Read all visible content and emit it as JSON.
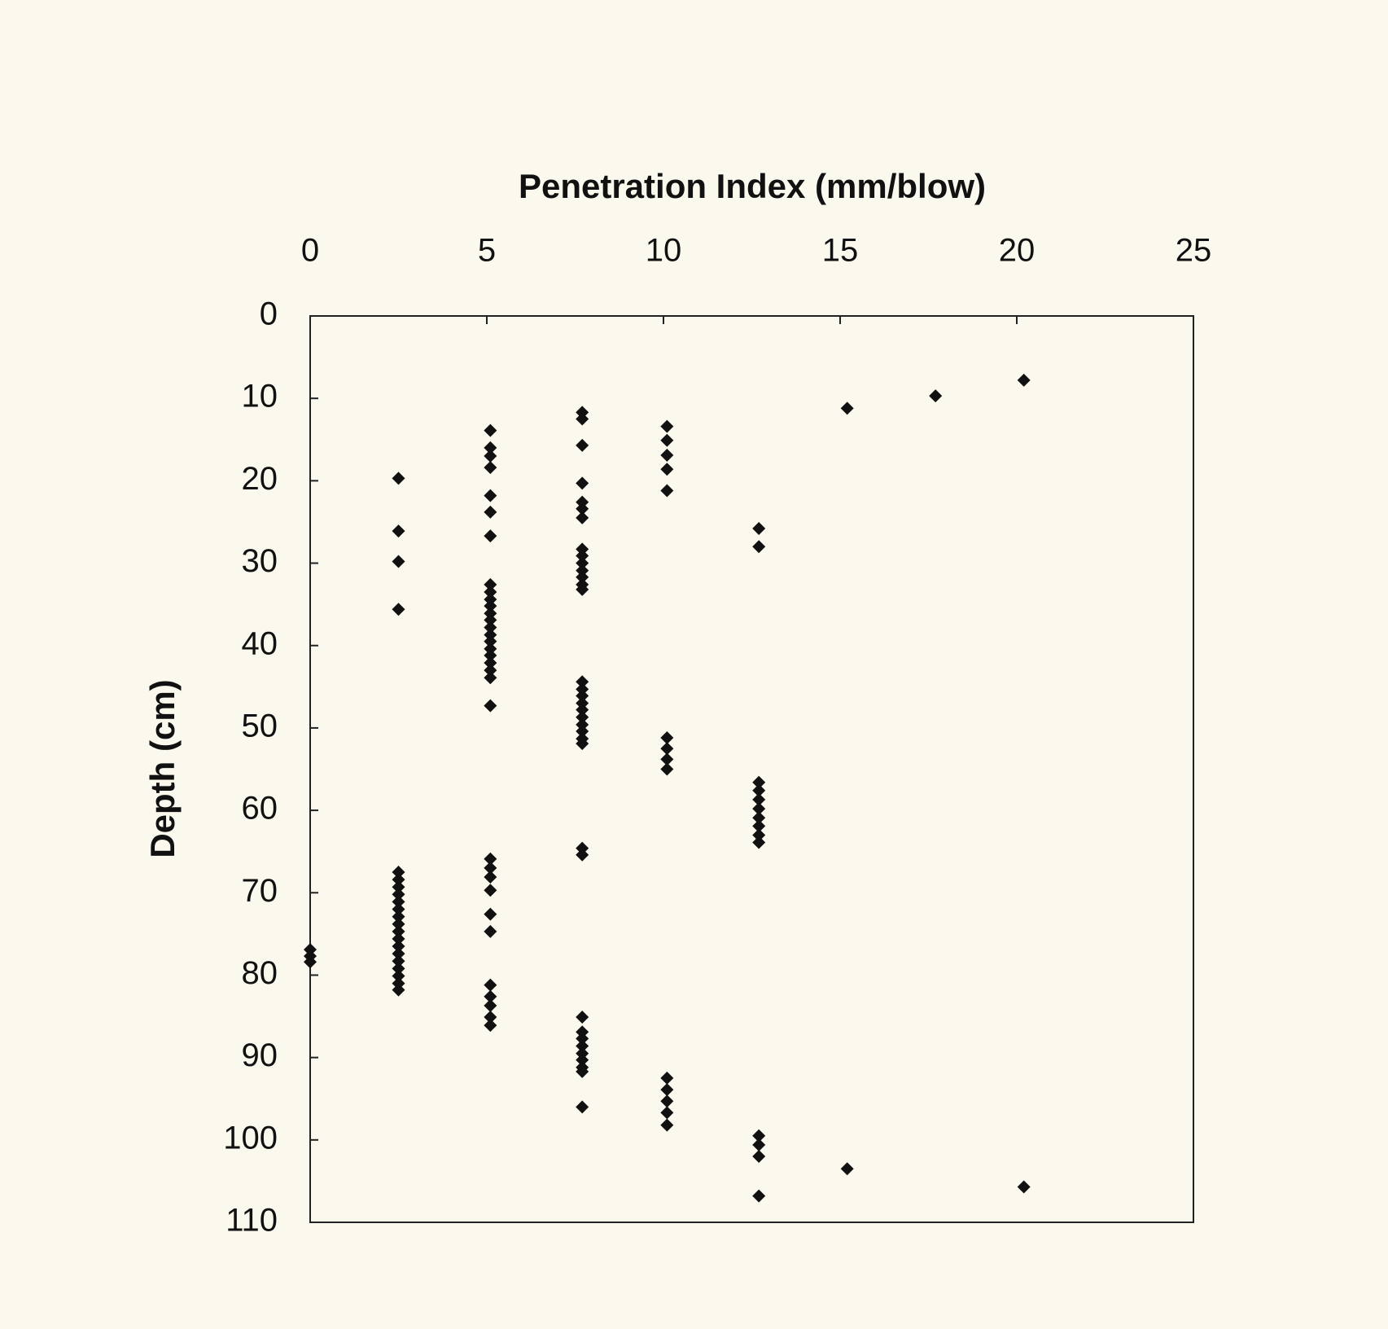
{
  "chart_data": {
    "type": "scatter",
    "x_label": "Penetration Index (mm/blow)",
    "y_label": "Depth (cm)",
    "xlim": [
      0,
      25
    ],
    "xticks": [
      0,
      5,
      10,
      15,
      20,
      25
    ],
    "ylim": [
      0,
      110
    ],
    "yticks": [
      0,
      10,
      20,
      30,
      40,
      50,
      60,
      70,
      80,
      90,
      100,
      110
    ],
    "y_inverted": true,
    "x_axis_position": "top",
    "grid": false,
    "color": "#111111",
    "x": [
      0,
      0,
      0,
      2.5,
      2.5,
      2.5,
      2.5,
      2.5,
      2.5,
      2.5,
      2.5,
      2.5,
      2.5,
      2.5,
      2.5,
      2.5,
      2.5,
      2.5,
      2.5,
      2.5,
      2.5,
      2.5,
      2.5,
      2.5,
      5.1,
      5.1,
      5.1,
      5.1,
      5.1,
      5.1,
      5.1,
      5.1,
      5.1,
      5.1,
      5.1,
      5.1,
      5.1,
      5.1,
      5.1,
      5.1,
      5.1,
      5.1,
      5.1,
      5.1,
      5.1,
      5.1,
      5.1,
      5.1,
      5.1,
      5.1,
      5.1,
      5.1,
      5.1,
      5.1,
      5.1,
      5.1,
      5.1,
      7.7,
      7.7,
      7.7,
      7.7,
      7.7,
      7.7,
      7.7,
      7.7,
      7.7,
      7.7,
      7.7,
      7.7,
      7.7,
      7.7,
      7.7,
      7.7,
      7.7,
      7.7,
      7.7,
      7.7,
      7.7,
      7.7,
      7.7,
      7.7,
      7.7,
      7.7,
      7.7,
      7.7,
      7.7,
      7.7,
      7.7,
      7.7,
      7.7,
      7.7,
      7.7,
      10.1,
      10.1,
      10.1,
      10.1,
      10.1,
      10.1,
      10.1,
      10.1,
      10.1,
      10.1,
      10.1,
      10.1,
      10.1,
      10.1,
      12.7,
      12.7,
      12.7,
      12.7,
      12.7,
      12.7,
      12.7,
      12.7,
      12.7,
      12.7,
      12.7,
      12.7,
      12.7,
      12.7,
      15.2,
      15.2,
      17.7,
      20.2,
      20.2
    ],
    "values": [
      76.9,
      77.7,
      78.4,
      19.7,
      26.1,
      29.8,
      35.6,
      67.5,
      68.4,
      69.3,
      70.2,
      71.1,
      72,
      72.9,
      73.8,
      74.7,
      75.6,
      76.5,
      77.4,
      78.3,
      79.2,
      80.1,
      81,
      81.8,
      13.9,
      16,
      17,
      18.4,
      21.8,
      23.8,
      26.7,
      32.6,
      33.5,
      34.4,
      35.2,
      36.1,
      36.9,
      37.8,
      38.7,
      39.5,
      40.4,
      41.2,
      42.1,
      43,
      43.9,
      47.3,
      65.9,
      67,
      68.1,
      69.7,
      72.6,
      74.7,
      81.2,
      82.6,
      83.7,
      85.1,
      86.1,
      11.7,
      12.5,
      15.7,
      20.3,
      22.6,
      23.4,
      24.5,
      28.3,
      29.1,
      30,
      30.9,
      31.7,
      32.6,
      33.2,
      44.4,
      45.3,
      46.1,
      47,
      47.8,
      48.7,
      49.6,
      50.4,
      51.3,
      51.9,
      64.6,
      65.4,
      85.1,
      86.9,
      87.7,
      88.6,
      89.5,
      90.3,
      91.2,
      91.7,
      96,
      13.4,
      15.1,
      16.9,
      18.6,
      21.2,
      51.2,
      52.5,
      53.8,
      55,
      92.5,
      93.9,
      95.3,
      96.7,
      98.2,
      25.8,
      28,
      56.6,
      57.6,
      58.7,
      59.8,
      60.9,
      61.9,
      63,
      63.9,
      99.5,
      100.6,
      102,
      106.8,
      11.2,
      103.5,
      9.7,
      7.8,
      105.7
    ]
  }
}
